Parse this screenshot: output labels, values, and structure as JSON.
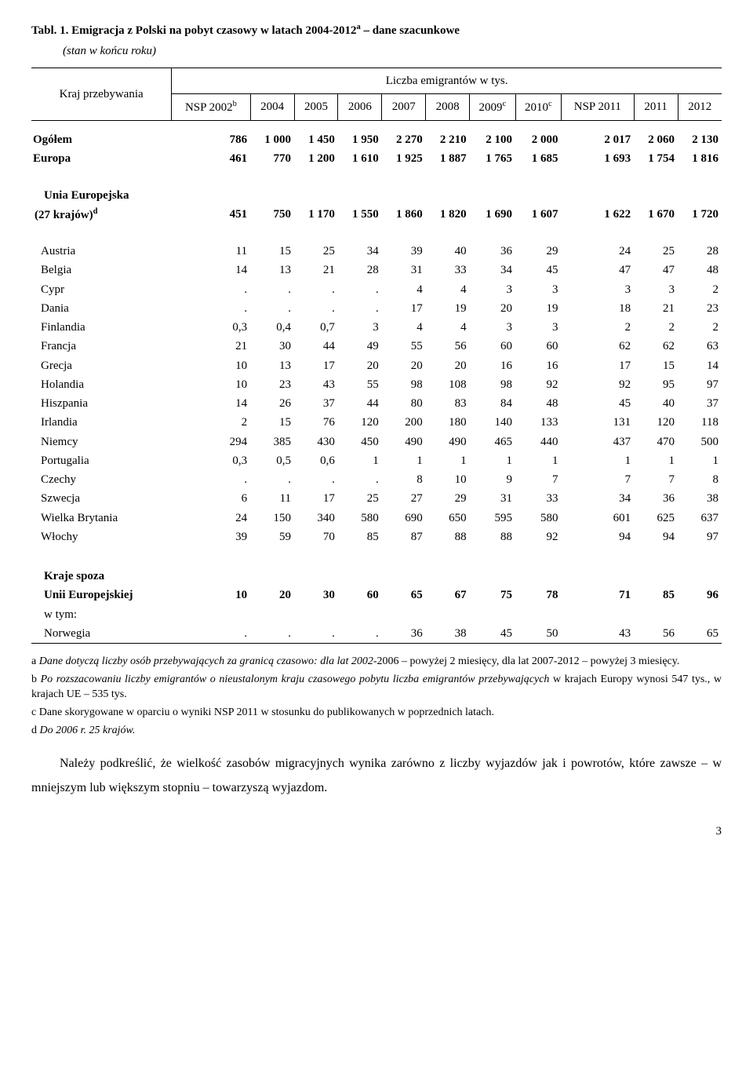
{
  "title_prefix": "Tabl. 1. ",
  "title_main": "Emigracja z Polski na pobyt czasowy w latach 2004-2012",
  "title_sup": "a",
  "title_suffix": " – dane szacunkowe",
  "subtitle": "(stan w końcu roku)",
  "header": {
    "rowlabel": "Kraj przebywania",
    "spanlabel": "Liczba emigrantów w tys.",
    "cols": [
      "NSP 2002",
      "2004",
      "2005",
      "2006",
      "2007",
      "2008",
      "2009",
      "2010",
      "NSP 2011",
      "2011",
      "2012"
    ],
    "col0_sup": "b",
    "col6_sup": "c",
    "col7_sup": "c"
  },
  "rows_top": [
    {
      "label": "Ogółem",
      "bold": true,
      "v": [
        "786",
        "1 000",
        "1 450",
        "1 950",
        "2 270",
        "2 210",
        "2 100",
        "2 000",
        "2 017",
        "2 060",
        "2 130"
      ]
    },
    {
      "label": "Europa",
      "bold": true,
      "v": [
        "461",
        "770",
        "1 200",
        "1 610",
        "1 925",
        "1 887",
        "1 765",
        "1 685",
        "1 693",
        "1 754",
        "1 816"
      ]
    }
  ],
  "rows_ue_header": {
    "label_l1": "Unia Europejska",
    "label_l2": "(27 krajów)",
    "sup": "d",
    "v": [
      "451",
      "750",
      "1 170",
      "1 550",
      "1 860",
      "1 820",
      "1 690",
      "1 607",
      "1 622",
      "1 670",
      "1 720"
    ]
  },
  "rows_countries": [
    {
      "label": "Austria",
      "v": [
        "11",
        "15",
        "25",
        "34",
        "39",
        "40",
        "36",
        "29",
        "24",
        "25",
        "28"
      ]
    },
    {
      "label": "Belgia",
      "v": [
        "14",
        "13",
        "21",
        "28",
        "31",
        "33",
        "34",
        "45",
        "47",
        "47",
        "48"
      ]
    },
    {
      "label": "Cypr",
      "v": [
        ".",
        ".",
        ".",
        ".",
        "4",
        "4",
        "3",
        "3",
        "3",
        "3",
        "2"
      ]
    },
    {
      "label": "Dania",
      "v": [
        ".",
        ".",
        ".",
        ".",
        "17",
        "19",
        "20",
        "19",
        "18",
        "21",
        "23"
      ]
    },
    {
      "label": "Finlandia",
      "v": [
        "0,3",
        "0,4",
        "0,7",
        "3",
        "4",
        "4",
        "3",
        "3",
        "2",
        "2",
        "2"
      ]
    },
    {
      "label": "Francja",
      "v": [
        "21",
        "30",
        "44",
        "49",
        "55",
        "56",
        "60",
        "60",
        "62",
        "62",
        "63"
      ]
    },
    {
      "label": "Grecja",
      "v": [
        "10",
        "13",
        "17",
        "20",
        "20",
        "20",
        "16",
        "16",
        "17",
        "15",
        "14"
      ]
    },
    {
      "label": "Holandia",
      "v": [
        "10",
        "23",
        "43",
        "55",
        "98",
        "108",
        "98",
        "92",
        "92",
        "95",
        "97"
      ]
    },
    {
      "label": "Hiszpania",
      "v": [
        "14",
        "26",
        "37",
        "44",
        "80",
        "83",
        "84",
        "48",
        "45",
        "40",
        "37"
      ]
    },
    {
      "label": "Irlandia",
      "v": [
        "2",
        "15",
        "76",
        "120",
        "200",
        "180",
        "140",
        "133",
        "131",
        "120",
        "118"
      ]
    },
    {
      "label": "Niemcy",
      "v": [
        "294",
        "385",
        "430",
        "450",
        "490",
        "490",
        "465",
        "440",
        "437",
        "470",
        "500"
      ]
    },
    {
      "label": "Portugalia",
      "v": [
        "0,3",
        "0,5",
        "0,6",
        "1",
        "1",
        "1",
        "1",
        "1",
        "1",
        "1",
        "1"
      ]
    },
    {
      "label": "Czechy",
      "v": [
        ".",
        ".",
        ".",
        ".",
        "8",
        "10",
        "9",
        "7",
        "7",
        "7",
        "8"
      ]
    },
    {
      "label": "Szwecja",
      "v": [
        "6",
        "11",
        "17",
        "25",
        "27",
        "29",
        "31",
        "33",
        "34",
        "36",
        "38"
      ]
    },
    {
      "label": "Wielka Brytania",
      "v": [
        "24",
        "150",
        "340",
        "580",
        "690",
        "650",
        "595",
        "580",
        "601",
        "625",
        "637"
      ]
    },
    {
      "label": "Włochy",
      "v": [
        "39",
        "59",
        "70",
        "85",
        "87",
        "88",
        "88",
        "92",
        "94",
        "94",
        "97"
      ]
    }
  ],
  "rows_noneu_header": {
    "label_l1": "Kraje spoza",
    "label_l2": "Unii Europejskiej",
    "v": [
      "10",
      "20",
      "30",
      "60",
      "65",
      "67",
      "75",
      "78",
      "71",
      "85",
      "96"
    ]
  },
  "rows_noneu_sub": {
    "label": "w tym:"
  },
  "rows_norway": {
    "label": "Norwegia",
    "v": [
      ".",
      ".",
      ".",
      ".",
      "36",
      "38",
      "45",
      "50",
      "43",
      "56",
      "65"
    ]
  },
  "notes": {
    "a_prefix": "a   ",
    "a_italic": "Dane dotyczą liczby osób przebywających za granicą czasowo: dla lat 2002-",
    "a_rest": "2006 – powyżej 2 miesięcy, dla lat 2007-2012 – powyżej 3 miesięcy.",
    "b_prefix": "b   ",
    "b_italic": "Po rozszacowaniu liczby emigrantów o nieustalonym kraju czasowego pobytu liczba emigrantów przebywających",
    "b_rest": " w krajach Europy wynosi 547 tys., w krajach UE – 535 tys.",
    "c": "c    Dane skorygowane w oparciu o wyniki NSP 2011 w stosunku do publikowanych w poprzednich latach.",
    "d_prefix": "d   ",
    "d_italic": "Do 2006 r. 25 krajów."
  },
  "conclusion": "Należy podkreślić, że wielkość zasobów migracyjnych wynika zarówno z liczby wyjazdów jak i powrotów, które zawsze – w mniejszym lub większym stopniu – towarzyszą wyjazdom.",
  "pagenum": "3"
}
